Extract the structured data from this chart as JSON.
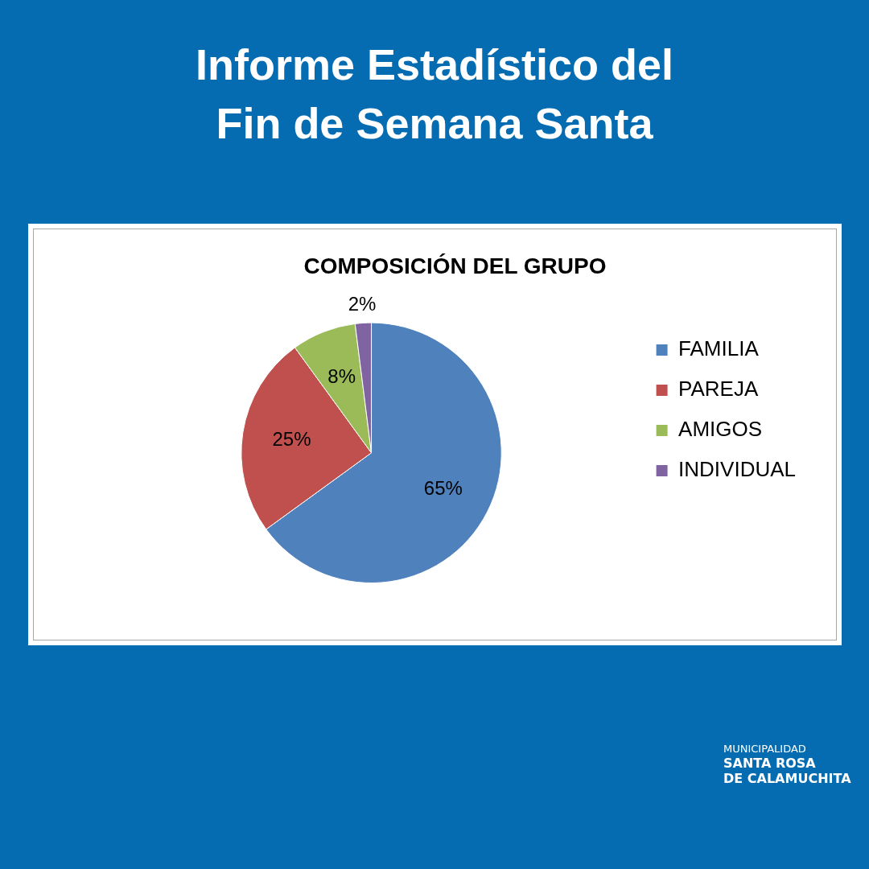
{
  "chart_data": {
    "type": "pie",
    "title": "Informe Estadístico del Fin de Semana Santa",
    "subtitle": "COMPOSICIÓN DEL GRUPO",
    "categories": [
      "FAMILIA",
      "PAREJA",
      "AMIGOS",
      "INDIVIDUAL"
    ],
    "values": [
      65,
      25,
      8,
      2
    ],
    "colors": [
      "#4f81bd",
      "#c0504d",
      "#9bbb59",
      "#8064a2"
    ],
    "value_labels": [
      "65%",
      "25%",
      "8%",
      "2%"
    ],
    "legend": "right",
    "annotations": [
      "MUNICIPALIDAD\nSANTA ROSA\nDE CALAMUCHITA"
    ]
  }
}
